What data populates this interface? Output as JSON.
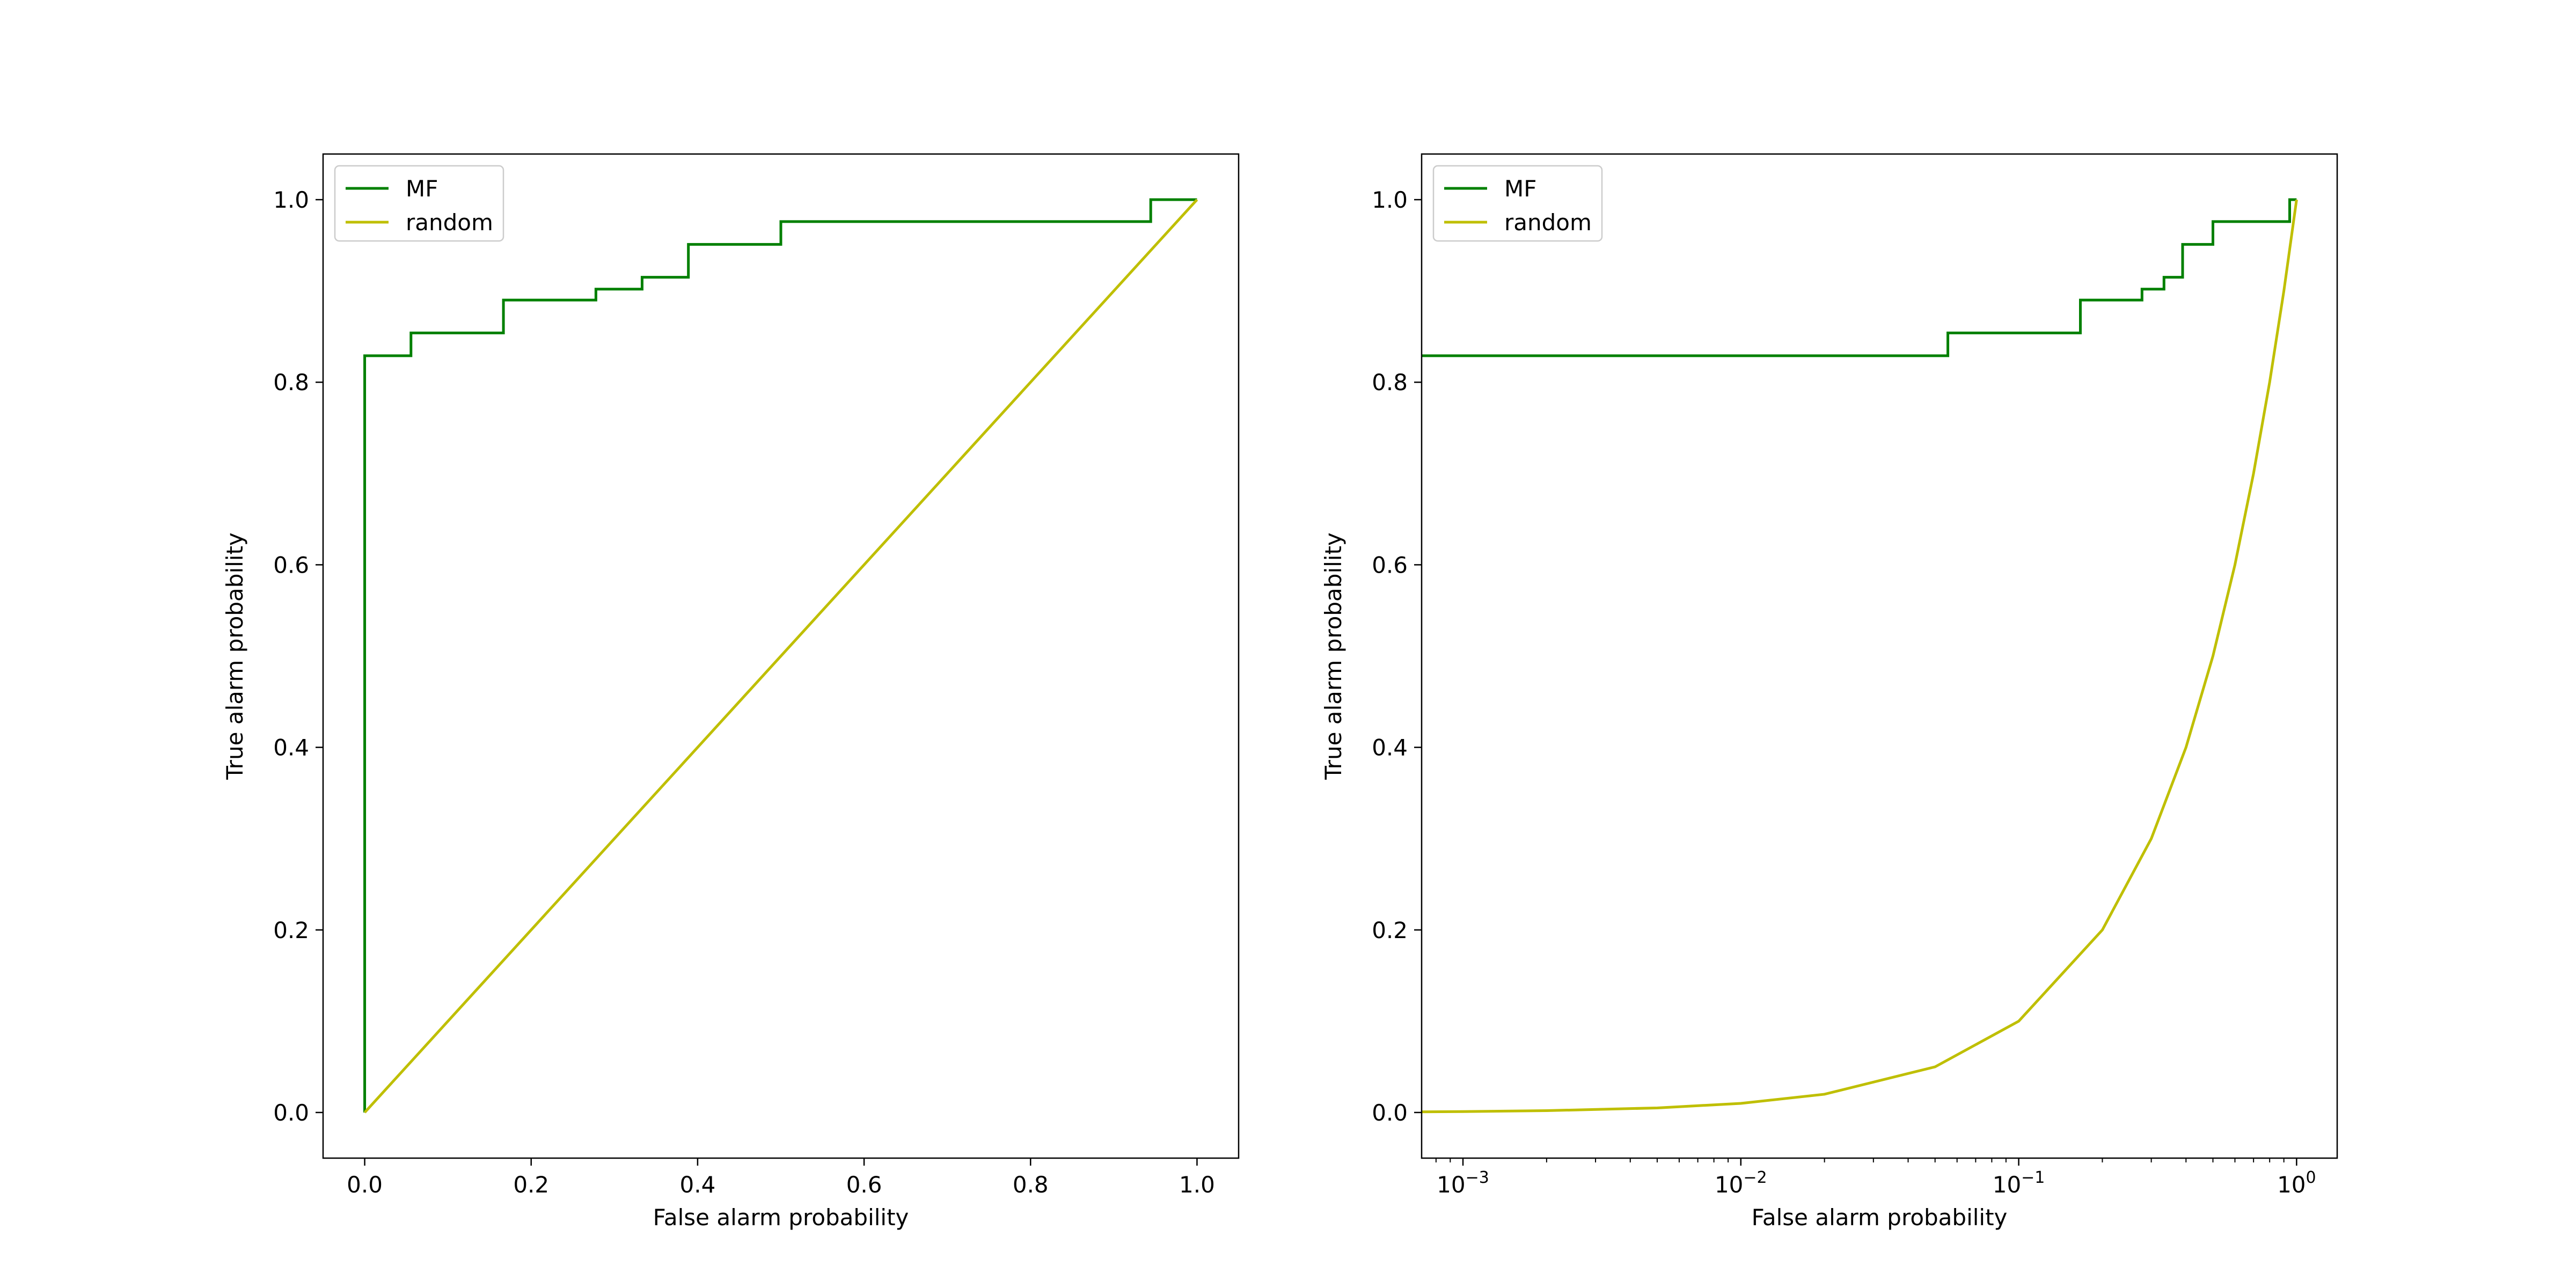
{
  "chart_data": [
    {
      "type": "line",
      "xscale": "linear",
      "xlabel": "False alarm probability",
      "ylabel": "True alarm probability",
      "xlim": [
        -0.05,
        1.05
      ],
      "ylim": [
        -0.05,
        1.05
      ],
      "xticks": [
        0.0,
        0.2,
        0.4,
        0.6,
        0.8,
        1.0
      ],
      "xtick_labels": [
        "0.0",
        "0.2",
        "0.4",
        "0.6",
        "0.8",
        "1.0"
      ],
      "yticks": [
        0.0,
        0.2,
        0.4,
        0.6,
        0.8,
        1.0
      ],
      "ytick_labels": [
        "0.0",
        "0.2",
        "0.4",
        "0.6",
        "0.8",
        "1.0"
      ],
      "grid": false,
      "legend_position": "upper-left",
      "series": [
        {
          "name": "MF",
          "color": "#008000",
          "x": [
            0.0,
            0.0,
            0.0556,
            0.0556,
            0.1667,
            0.1667,
            0.2778,
            0.2778,
            0.3333,
            0.3333,
            0.3889,
            0.3889,
            0.5,
            0.5,
            0.9444,
            0.9444,
            1.0
          ],
          "y": [
            0.0,
            0.829,
            0.829,
            0.854,
            0.854,
            0.89,
            0.89,
            0.902,
            0.902,
            0.915,
            0.915,
            0.951,
            0.951,
            0.976,
            0.976,
            1.0,
            1.0
          ]
        },
        {
          "name": "random",
          "color": "#bfbf00",
          "x": [
            0.0,
            1.0
          ],
          "y": [
            0.0,
            1.0
          ]
        }
      ]
    },
    {
      "type": "line",
      "xscale": "log",
      "xlabel": "False alarm probability",
      "ylabel": "True alarm probability",
      "xlim": [
        0.00071,
        1.4
      ],
      "ylim": [
        -0.05,
        1.05
      ],
      "xticks": [
        0.001,
        0.01,
        0.1,
        1.0
      ],
      "xtick_labels": [
        {
          "base": "10",
          "exp": "−3"
        },
        {
          "base": "10",
          "exp": "−2"
        },
        {
          "base": "10",
          "exp": "−1"
        },
        {
          "base": "10",
          "exp": "0"
        }
      ],
      "yticks": [
        0.0,
        0.2,
        0.4,
        0.6,
        0.8,
        1.0
      ],
      "ytick_labels": [
        "0.0",
        "0.2",
        "0.4",
        "0.6",
        "0.8",
        "1.0"
      ],
      "grid": false,
      "legend_position": "upper-left",
      "series": [
        {
          "name": "MF",
          "color": "#008000",
          "x": [
            0.00071,
            0.0556,
            0.0556,
            0.1667,
            0.1667,
            0.2778,
            0.2778,
            0.3333,
            0.3333,
            0.3889,
            0.3889,
            0.5,
            0.5,
            0.9444,
            0.9444,
            1.0
          ],
          "y": [
            0.829,
            0.829,
            0.854,
            0.854,
            0.89,
            0.89,
            0.902,
            0.902,
            0.915,
            0.915,
            0.951,
            0.951,
            0.976,
            0.976,
            1.0,
            1.0
          ]
        },
        {
          "name": "random",
          "color": "#bfbf00",
          "x": [
            0.00071,
            0.001,
            0.002,
            0.005,
            0.01,
            0.02,
            0.05,
            0.1,
            0.2,
            0.3,
            0.4,
            0.5,
            0.6,
            0.7,
            0.8,
            0.9,
            1.0
          ],
          "y": [
            0.00071,
            0.001,
            0.002,
            0.005,
            0.01,
            0.02,
            0.05,
            0.1,
            0.2,
            0.3,
            0.4,
            0.5,
            0.6,
            0.7,
            0.8,
            0.9,
            1.0
          ]
        }
      ]
    }
  ]
}
